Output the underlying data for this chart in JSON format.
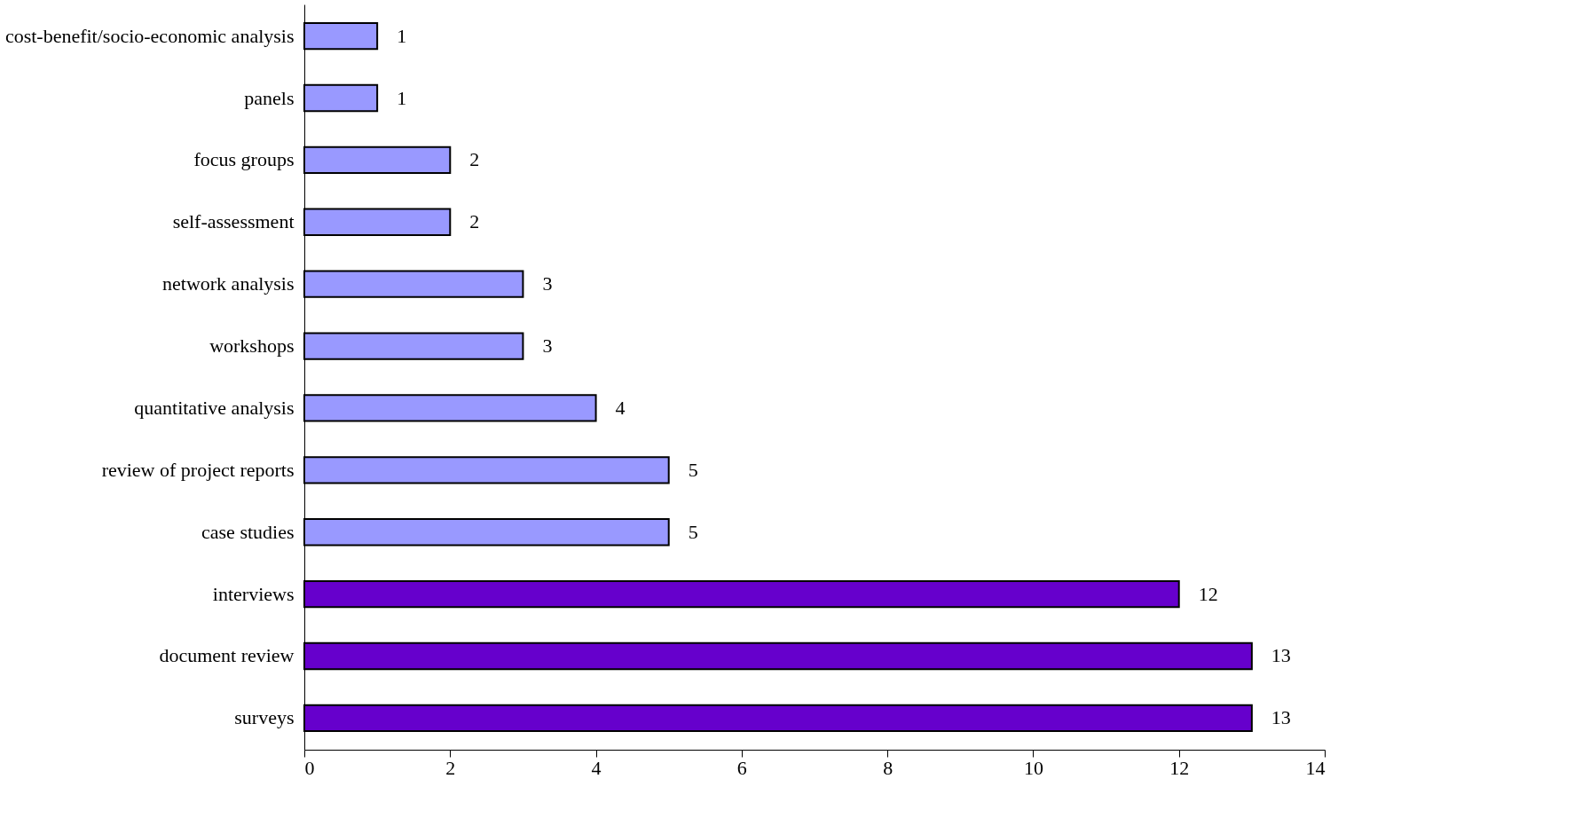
{
  "chart_data": {
    "type": "bar",
    "orientation": "horizontal",
    "categories": [
      "cost-benefit/socio-economic analysis",
      "panels",
      "focus groups",
      "self-assessment",
      "network analysis",
      "workshops",
      "quantitative analysis",
      "review of project reports",
      "case studies",
      "interviews",
      "document review",
      "surveys"
    ],
    "values": [
      1,
      1,
      2,
      2,
      3,
      3,
      4,
      5,
      5,
      12,
      13,
      13
    ],
    "colors": [
      "#9999ff",
      "#9999ff",
      "#9999ff",
      "#9999ff",
      "#9999ff",
      "#9999ff",
      "#9999ff",
      "#9999ff",
      "#9999ff",
      "#6600cc",
      "#6600cc",
      "#6600cc"
    ],
    "xlim": [
      0,
      14
    ],
    "xticks": [
      0,
      2,
      4,
      6,
      8,
      10,
      12,
      14
    ],
    "data_labels": true,
    "grid": false
  }
}
